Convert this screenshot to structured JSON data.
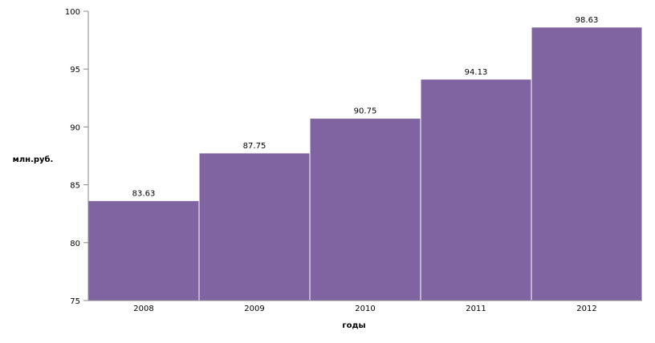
{
  "chart_data": {
    "type": "bar",
    "title": "",
    "xlabel": "годы",
    "ylabel": "млн.руб.",
    "categories": [
      "2008",
      "2009",
      "2010",
      "2011",
      "2012"
    ],
    "values": [
      83.63,
      87.75,
      90.75,
      94.13,
      98.63
    ],
    "value_labels": [
      "83.63",
      "87.75",
      "90.75",
      "94.13",
      "98.63"
    ],
    "ylim": [
      75,
      100
    ],
    "yticks": [
      75,
      80,
      85,
      90,
      95,
      100
    ],
    "grid": false,
    "legend": "none",
    "bar_color": "#8064a2"
  }
}
